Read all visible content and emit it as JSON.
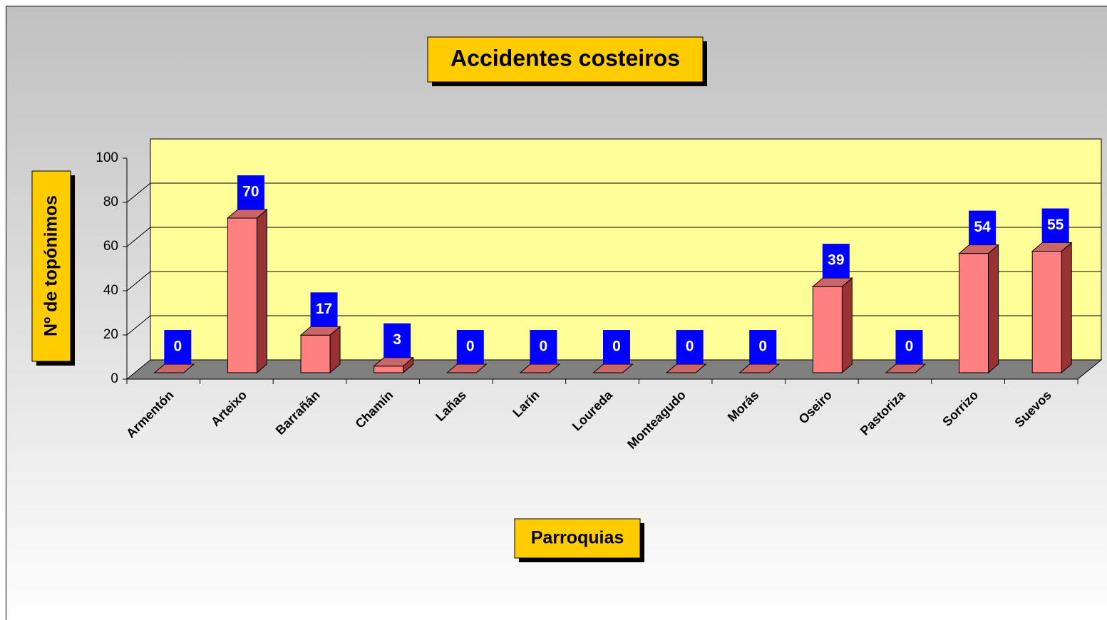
{
  "chart_data": {
    "type": "bar",
    "title": "Accidentes costeiros",
    "y_label": "Nº de topónimos",
    "x_label": "Parroquias",
    "categories": [
      "Armentón",
      "Arteixo",
      "Barrañán",
      "Chamín",
      "Lañas",
      "Larín",
      "Loureda",
      "Monteagudo",
      "Morás",
      "Oseiro",
      "Pastoriza",
      "Sorrizo",
      "Suevos"
    ],
    "values": [
      0,
      70,
      17,
      3,
      0,
      0,
      0,
      0,
      0,
      39,
      0,
      54,
      55
    ],
    "color": "#ff8080",
    "ylim": [
      0,
      100
    ],
    "yticks": [
      0,
      20,
      40,
      60,
      80,
      100
    ],
    "grid": true
  }
}
